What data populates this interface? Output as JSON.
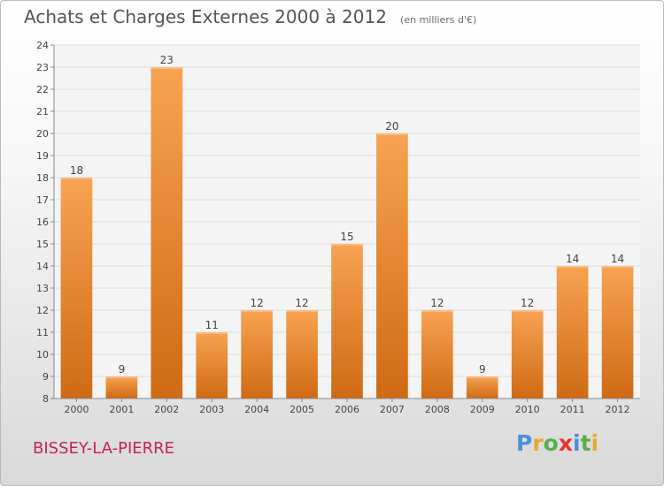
{
  "title": "Achats et Charges Externes 2000 à 2012",
  "subtitle": "(en milliers d'€)",
  "place": "BISSEY-LA-PIERRE",
  "brand": {
    "text": "Proxiti",
    "colors": [
      "#4a90d9",
      "#e8a92b",
      "#5bb04a",
      "#e3342f",
      "#4a90d9",
      "#5bb04a",
      "#e8a92b"
    ]
  },
  "chart_data": {
    "type": "bar",
    "categories": [
      "2000",
      "2001",
      "2002",
      "2003",
      "2004",
      "2005",
      "2006",
      "2007",
      "2008",
      "2009",
      "2010",
      "2011",
      "2012"
    ],
    "values": [
      18,
      9,
      23,
      11,
      12,
      12,
      15,
      20,
      12,
      9,
      12,
      14,
      14
    ],
    "ylim": [
      8,
      24
    ],
    "yticks": [
      8,
      9,
      10,
      11,
      12,
      13,
      14,
      15,
      16,
      17,
      18,
      19,
      20,
      21,
      22,
      23,
      24
    ],
    "grid": true,
    "bar_color": "#f0922f"
  }
}
